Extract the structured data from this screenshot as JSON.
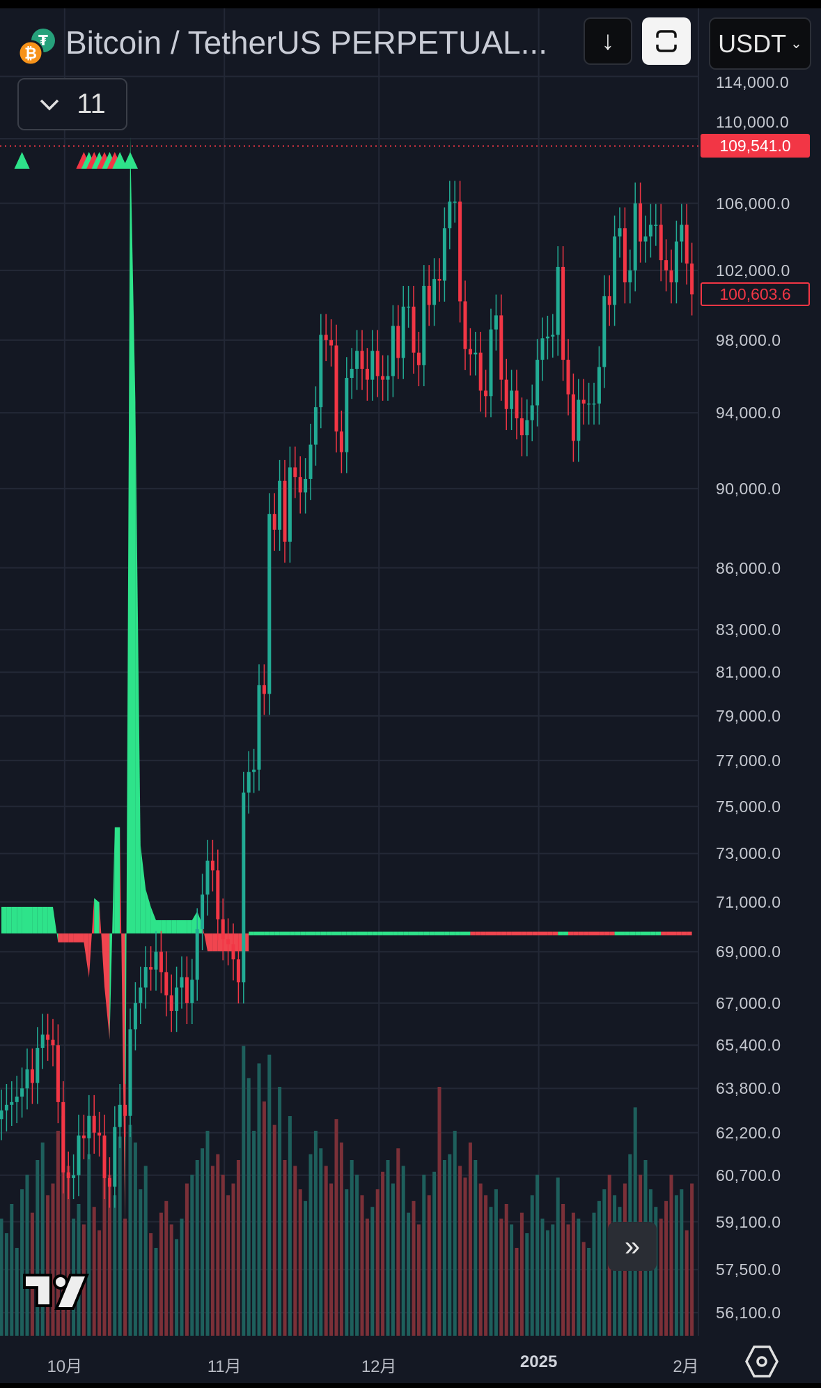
{
  "header": {
    "title": "Bitcoin / TetherUS PERPETUAL...",
    "download_icon": "arrow-down-icon",
    "fullscreen_icon": "fullscreen-icon",
    "currency": "USDT",
    "indicator_count": "11"
  },
  "colors": {
    "background": "#141823",
    "up": "#22ab94",
    "down": "#f23645",
    "oscillator_up": "#2ee38a",
    "oscillator_down": "#f0454f",
    "grid": "#232836"
  },
  "price_axis": {
    "labels": [
      "114,000.0",
      "110,000.0",
      "106,000.0",
      "102,000.0",
      "98,000.0",
      "94,000.0",
      "90,000.0",
      "86,000.0",
      "83,000.0",
      "81,000.0",
      "79,000.0",
      "77,000.0",
      "75,000.0",
      "73,000.0",
      "71,000.0",
      "69,000.0",
      "67,000.0",
      "65,400.0",
      "63,800.0",
      "62,200.0",
      "60,700.0",
      "59,100.0",
      "57,500.0",
      "56,100.0"
    ],
    "high_tag": "109,541.0",
    "current_tag": "100,603.6"
  },
  "time_axis": {
    "labels": [
      "10月",
      "11月",
      "12月",
      "2025",
      "2月"
    ]
  },
  "chart_data": {
    "type": "candlestick",
    "scale": "log",
    "start_date": "2024-09-19",
    "interval": "1D",
    "ylim": [
      55500,
      115000
    ],
    "high_marker": 109541.0,
    "last_price": 100603.6,
    "grid": true,
    "closes": [
      63000,
      63200,
      63300,
      63500,
      63800,
      64500,
      64000,
      65300,
      65800,
      65600,
      65400,
      63300,
      60800,
      60600,
      60700,
      62100,
      62000,
      62800,
      62200,
      62100,
      60600,
      60300,
      62400,
      63200,
      62800,
      66000,
      67000,
      67600,
      68400,
      68300,
      69000,
      68200,
      67300,
      66700,
      67600,
      68000,
      67000,
      67900,
      69900,
      71300,
      72700,
      72300,
      70300,
      69500,
      69300,
      68700,
      67800,
      75600,
      76500,
      76600,
      80400,
      80000,
      88700,
      87900,
      90400,
      87300,
      91100,
      90600,
      89800,
      90500,
      92300,
      94300,
      98300,
      98000,
      97700,
      93000,
      91900,
      95900,
      96400,
      97400,
      96400,
      95800,
      97400,
      96000,
      95800,
      96000,
      98800,
      97000,
      99900,
      99900,
      97300,
      96600,
      101100,
      100000,
      101500,
      101400,
      104500,
      106100,
      106100,
      100200,
      97500,
      97200,
      97300,
      95200,
      94900,
      98600,
      99400,
      95800,
      94200,
      95200,
      93700,
      92800,
      93600,
      94400,
      96900,
      98100,
      98200,
      98300,
      102200,
      96900,
      95000,
      92500,
      94700,
      94500,
      94500,
      94500,
      96500,
      100500,
      100000,
      104000,
      104500,
      101300,
      102000,
      106000,
      103700,
      104000,
      104700,
      104700,
      102600,
      102000,
      101300,
      103700,
      104700,
      102400,
      100603.6
    ],
    "volumes": [
      40,
      35,
      45,
      30,
      50,
      55,
      42,
      60,
      66,
      48,
      52,
      70,
      75,
      58,
      40,
      45,
      38,
      62,
      44,
      36,
      60,
      55,
      48,
      68,
      40,
      72,
      66,
      50,
      58,
      35,
      30,
      42,
      46,
      38,
      33,
      40,
      52,
      55,
      60,
      64,
      70,
      58,
      62,
      55,
      48,
      52,
      60,
      99,
      88,
      70,
      93,
      80,
      96,
      72,
      85,
      60,
      75,
      58,
      50,
      46,
      62,
      70,
      64,
      58,
      52,
      74,
      66,
      50,
      60,
      55,
      48,
      40,
      44,
      50,
      56,
      60,
      52,
      64,
      58,
      42,
      46,
      38,
      55,
      48,
      56,
      85,
      60,
      62,
      70,
      58,
      54,
      66,
      60,
      52,
      48,
      44,
      50,
      40,
      45,
      38,
      30,
      42,
      35,
      48,
      55,
      40,
      36,
      38,
      54,
      45,
      38,
      42,
      40,
      32,
      30,
      42,
      46,
      50,
      55,
      48,
      44,
      52,
      62,
      78,
      55,
      60,
      50,
      44,
      40,
      46,
      55,
      48,
      50,
      36,
      52
    ],
    "oscillator": [
      3,
      3,
      3,
      3,
      3,
      3,
      3,
      3,
      3,
      3,
      3,
      -1,
      -1,
      -1,
      -1,
      -1,
      -1,
      -5,
      4,
      3.5,
      -6,
      -12,
      12,
      12,
      -33,
      90,
      60,
      10,
      5,
      3,
      1.5,
      1.5,
      1.5,
      1.5,
      1.5,
      1.5,
      1.5,
      1.5,
      2.5,
      1,
      -2,
      -2,
      -2,
      -2,
      -2,
      -2,
      -2,
      -2,
      -2
    ],
    "oscillator_tail_down_ranges": [
      [
        91,
        108
      ],
      [
        110,
        119
      ],
      [
        128,
        134
      ]
    ],
    "signal_markers": [
      {
        "day": 4,
        "dir": "up"
      },
      {
        "day": 16,
        "dir": "down"
      },
      {
        "day": 17,
        "dir": "up"
      },
      {
        "day": 18,
        "dir": "down"
      },
      {
        "day": 19,
        "dir": "up"
      },
      {
        "day": 20,
        "dir": "down"
      },
      {
        "day": 21,
        "dir": "up"
      },
      {
        "day": 22,
        "dir": "down"
      },
      {
        "day": 23,
        "dir": "up"
      },
      {
        "day": 25,
        "dir": "up"
      }
    ]
  },
  "footer": {
    "scroll_icon": "double-chevron-right-icon",
    "settings_icon": "settings-icon",
    "logo": "TV"
  }
}
